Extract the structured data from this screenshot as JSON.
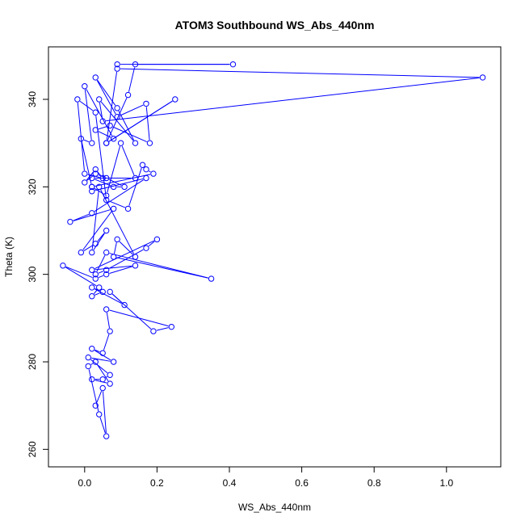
{
  "chart_data": {
    "type": "line",
    "title": "ATOM3 Southbound WS_Abs_440nm",
    "xlabel": "WS_Abs_440nm",
    "ylabel": "Theta (K)",
    "xlim": [
      -0.1,
      1.15
    ],
    "ylim": [
      256,
      352
    ],
    "xticks": [
      0.0,
      0.2,
      0.4,
      0.6,
      0.8,
      1.0
    ],
    "xtick_labels": [
      "0.0",
      "0.2",
      "0.4",
      "0.6",
      "0.8",
      "1.0"
    ],
    "yticks": [
      260,
      280,
      300,
      320,
      340
    ],
    "ytick_labels": [
      "260",
      "280",
      "300",
      "320",
      "340"
    ],
    "grid": false,
    "marker": "open-circle",
    "color": "#0000ff",
    "series": [
      {
        "x": [
          0.09,
          0.41,
          0.14,
          0.12,
          0.06,
          0.25,
          0.06,
          0.09,
          1.1,
          0.05,
          0.04,
          0.14,
          0.09,
          0.03,
          0.09,
          0.17,
          0.18,
          0.07,
          0.03,
          0.08,
          0.0,
          0.02,
          -0.01,
          0.02,
          0.06,
          0.1,
          0.14,
          0.02,
          0.08,
          0.11,
          0.06,
          0.03,
          0.0,
          0.03,
          0.05,
          0.0,
          -0.02,
          0.03,
          0.06,
          0.12,
          0.16,
          0.17,
          0.19,
          0.02,
          0.02,
          0.17,
          0.02,
          -0.04,
          0.08,
          -0.01,
          0.03,
          0.06,
          0.02,
          0.04,
          0.14,
          0.09,
          0.08,
          0.35,
          0.06,
          0.03,
          0.06,
          0.17,
          0.2,
          0.02,
          0.14,
          0.06,
          0.03,
          -0.06,
          0.04,
          0.02,
          0.05,
          0.02,
          0.11,
          0.07,
          0.19,
          0.24,
          0.06,
          0.07,
          0.05,
          0.02,
          0.08,
          0.01,
          0.07,
          0.05,
          0.02,
          0.07,
          0.03,
          0.01,
          0.04,
          0.06,
          0.05,
          0.03
        ],
        "y": [
          348,
          348,
          348,
          341,
          330,
          340,
          330,
          347,
          345,
          335,
          340,
          330,
          338,
          345,
          336,
          339,
          330,
          334,
          333,
          331,
          343,
          330,
          331,
          320,
          318,
          330,
          322,
          322,
          320,
          320,
          322,
          323,
          321,
          324,
          322,
          323,
          340,
          337,
          317,
          315,
          325,
          324,
          323,
          320,
          319,
          322,
          314,
          312,
          315,
          305,
          307,
          310,
          305,
          320,
          304,
          308,
          304,
          299,
          305,
          300,
          301,
          306,
          308,
          301,
          302,
          300,
          299,
          302,
          297,
          295,
          296,
          297,
          293,
          296,
          287,
          288,
          292,
          287,
          282,
          283,
          280,
          281,
          277,
          276,
          276,
          275,
          280,
          279,
          268,
          263,
          274,
          270
        ]
      }
    ]
  }
}
